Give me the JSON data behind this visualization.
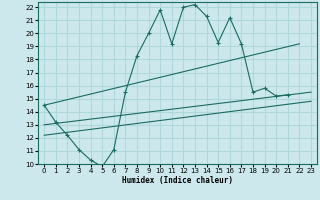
{
  "xlabel": "Humidex (Indice chaleur)",
  "xlim": [
    -0.5,
    23.5
  ],
  "ylim": [
    10,
    22.4
  ],
  "yticks": [
    10,
    11,
    12,
    13,
    14,
    15,
    16,
    17,
    18,
    19,
    20,
    21,
    22
  ],
  "xticks": [
    0,
    1,
    2,
    3,
    4,
    5,
    6,
    7,
    8,
    9,
    10,
    11,
    12,
    13,
    14,
    15,
    16,
    17,
    18,
    19,
    20,
    21,
    22,
    23
  ],
  "bg_color": "#cce8ec",
  "line_color": "#1a6b62",
  "grid_color": "#b0d8dc",
  "lines": [
    {
      "x": [
        0,
        1,
        2,
        3,
        4,
        5,
        6,
        7,
        8,
        9,
        10,
        11,
        12,
        13,
        14,
        15,
        16,
        17,
        18,
        19,
        20,
        21,
        22,
        23
      ],
      "y": [
        14.5,
        13.2,
        12.2,
        11.1,
        10.3,
        9.8,
        11.1,
        15.5,
        18.3,
        20.0,
        21.8,
        19.2,
        22.0,
        22.2,
        21.3,
        19.3,
        21.2,
        19.2,
        15.5,
        15.8,
        15.2,
        15.3,
        null,
        null
      ],
      "marker": "+"
    },
    {
      "x": [
        0,
        22
      ],
      "y": [
        14.5,
        19.2
      ],
      "marker": null
    },
    {
      "x": [
        0,
        23
      ],
      "y": [
        13.0,
        15.5
      ],
      "marker": null
    },
    {
      "x": [
        0,
        23
      ],
      "y": [
        12.2,
        14.8
      ],
      "marker": null
    }
  ]
}
